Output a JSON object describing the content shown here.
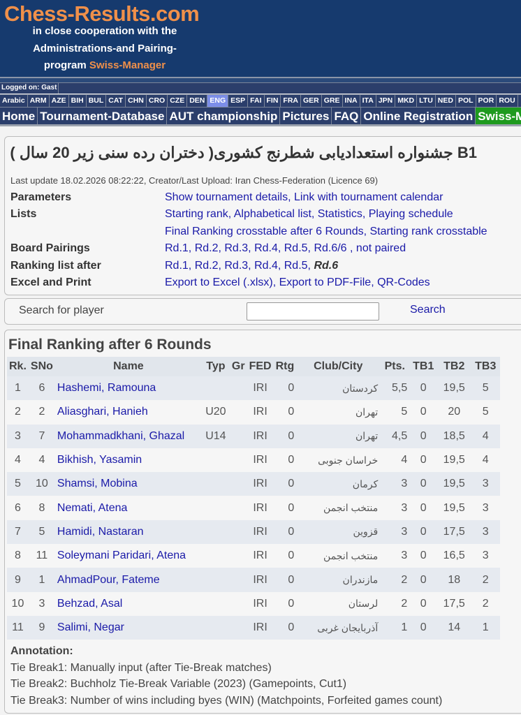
{
  "header": {
    "logo": "Chess-Results.com",
    "line1": "in close cooperation with the",
    "line2": "Administrations-and Pairing-",
    "line3_prefix": "program ",
    "line3_brand": "Swiss-Manager"
  },
  "logged_on": "Logged on: Gast",
  "languages": [
    "Arabic",
    "ARM",
    "AZE",
    "BIH",
    "BUL",
    "CAT",
    "CHN",
    "CRO",
    "CZE",
    "DEN",
    "ENG",
    "ESP",
    "FAI",
    "FIN",
    "FRA",
    "GER",
    "GRE",
    "INA",
    "ITA",
    "JPN",
    "MKD",
    "LTU",
    "NED",
    "POL",
    "POR",
    "ROU"
  ],
  "active_language": "ENG",
  "nav": [
    "Home",
    "Tournament-Database",
    "AUT championship",
    "Pictures",
    "FAQ",
    "Online Registration",
    "Swiss-Manager"
  ],
  "tournament": {
    "title": "B1 جشنواره استعدادیابی شطرنج کشوری( دختران رده سنی زیر 20 سال )",
    "last_update": "Last update 18.02.2026 08:22:22, Creator/Last Upload: Iran Chess-Federation (Licence 69)",
    "info": [
      {
        "label": "Parameters",
        "links": [
          "Show tournament details",
          "Link with tournament calendar"
        ]
      },
      {
        "label": "Lists",
        "links": [
          "Starting rank",
          "Alphabetical list",
          "Statistics",
          "Playing schedule"
        ]
      },
      {
        "label": "",
        "links": [
          "Final Ranking crosstable after 6 Rounds",
          "Starting rank crosstable"
        ]
      },
      {
        "label": "Board Pairings",
        "links": [
          "Rd.1",
          "Rd.2",
          "Rd.3",
          "Rd.4",
          "Rd.5",
          "Rd.6/6",
          ", not paired"
        ]
      },
      {
        "label": "Ranking list after",
        "links": [
          "Rd.1",
          "Rd.2",
          "Rd.3",
          "Rd.4",
          "Rd.5",
          "Rd.6"
        ]
      },
      {
        "label": "Excel and Print",
        "links": [
          "Export to Excel (.xlsx)",
          "Export to PDF-File",
          "QR-Codes"
        ]
      }
    ]
  },
  "search": {
    "label": "Search for player",
    "value": "",
    "button": "Search"
  },
  "ranking": {
    "title": "Final Ranking after 6 Rounds",
    "columns": [
      "Rk.",
      "SNo",
      "Name",
      "Typ",
      "Gr",
      "FED",
      "Rtg",
      "Club/City",
      "Pts.",
      "TB1",
      "TB2",
      "TB3"
    ],
    "rows": [
      [
        "1",
        "6",
        "Hashemi, Ramouna",
        "",
        "",
        "IRI",
        "0",
        "کردستان",
        "5,5",
        "0",
        "19,5",
        "5"
      ],
      [
        "2",
        "2",
        "Aliasghari, Hanieh",
        "U20",
        "",
        "IRI",
        "0",
        "تهران",
        "5",
        "0",
        "20",
        "5"
      ],
      [
        "3",
        "7",
        "Mohammadkhani, Ghazal",
        "U14",
        "",
        "IRI",
        "0",
        "تهران",
        "4,5",
        "0",
        "18,5",
        "4"
      ],
      [
        "4",
        "4",
        "Bikhish, Yasamin",
        "",
        "",
        "IRI",
        "0",
        "خراسان جنوبی",
        "4",
        "0",
        "19,5",
        "4"
      ],
      [
        "5",
        "10",
        "Shamsi, Mobina",
        "",
        "",
        "IRI",
        "0",
        "کرمان",
        "3",
        "0",
        "19,5",
        "3"
      ],
      [
        "6",
        "8",
        "Nemati, Atena",
        "",
        "",
        "IRI",
        "0",
        "منتخب انجمن",
        "3",
        "0",
        "19,5",
        "3"
      ],
      [
        "7",
        "5",
        "Hamidi, Nastaran",
        "",
        "",
        "IRI",
        "0",
        "قزوین",
        "3",
        "0",
        "17,5",
        "3"
      ],
      [
        "8",
        "11",
        "Soleymani Paridari, Atena",
        "",
        "",
        "IRI",
        "0",
        "منتخب انجمن",
        "3",
        "0",
        "16,5",
        "3"
      ],
      [
        "9",
        "1",
        "AhmadPour, Fateme",
        "",
        "",
        "IRI",
        "0",
        "مازندران",
        "2",
        "0",
        "18",
        "2"
      ],
      [
        "10",
        "3",
        "Behzad, Asal",
        "",
        "",
        "IRI",
        "0",
        "لرستان",
        "2",
        "0",
        "17,5",
        "2"
      ],
      [
        "11",
        "9",
        "Salimi, Negar",
        "",
        "",
        "IRI",
        "0",
        "آذربایجان غربی",
        "1",
        "0",
        "14",
        "1"
      ]
    ]
  },
  "annotation": {
    "title": "Annotation:",
    "lines": [
      "Tie Break1: Manually input (after Tie-Break matches)",
      "Tie Break2: Buchholz Tie-Break Variable (2023) (Gamepoints, Cut1)",
      "Tie Break3: Number of wins including byes (WIN) (Matchpoints, Forfeited games count)"
    ]
  },
  "colors": {
    "header_bg": "#163a6e",
    "logo_orange": "#f0904a",
    "nav_bg": "#2b3e6b",
    "active_lang": "#7c8ee8",
    "nav_green": "#1e9a1e",
    "link": "#1a1aa8"
  }
}
